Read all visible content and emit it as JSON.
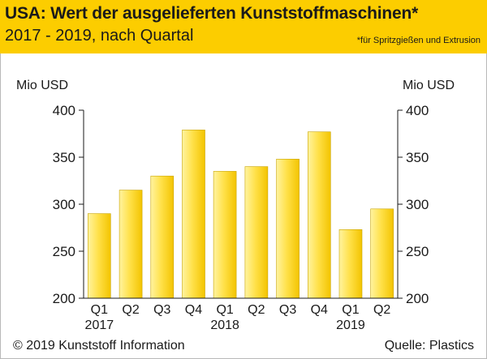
{
  "header": {
    "title": "USA: Wert der ausgelieferten Kunststoffmaschinen*",
    "subtitle": "2017 - 2019, nach Quartal",
    "footnote": "*für Spritzgießen und Extrusion"
  },
  "axis": {
    "left_unit": "Mio USD",
    "right_unit": "Mio USD"
  },
  "footer": {
    "copyright": "© 2019 Kunststoff Information",
    "source": "Quelle: Plastics"
  },
  "colors": {
    "header_bg": "#fccd00",
    "bar_top": "#fff3a0",
    "bar_mid": "#ffe14a",
    "bar_bottom": "#f3c400",
    "bar_stroke": "#c9a400",
    "axis": "#1a1a1a"
  },
  "chart_data": {
    "type": "bar",
    "title": "USA: Wert der ausgelieferten Kunststoffmaschinen*",
    "subtitle": "2017 - 2019, nach Quartal",
    "categories": [
      "Q1",
      "Q2",
      "Q3",
      "Q4",
      "Q1",
      "Q2",
      "Q3",
      "Q4",
      "Q1",
      "Q2"
    ],
    "years": [
      {
        "label": "2017",
        "start": 0
      },
      {
        "label": "2018",
        "start": 4
      },
      {
        "label": "2019",
        "start": 8
      }
    ],
    "values": [
      290,
      315,
      330,
      379,
      335,
      340,
      348,
      377,
      273,
      295
    ],
    "ylabel": "Mio USD",
    "y2label": "Mio USD",
    "ylim": [
      200,
      400
    ],
    "yticks": [
      200,
      250,
      300,
      350,
      400
    ],
    "grid": false
  }
}
